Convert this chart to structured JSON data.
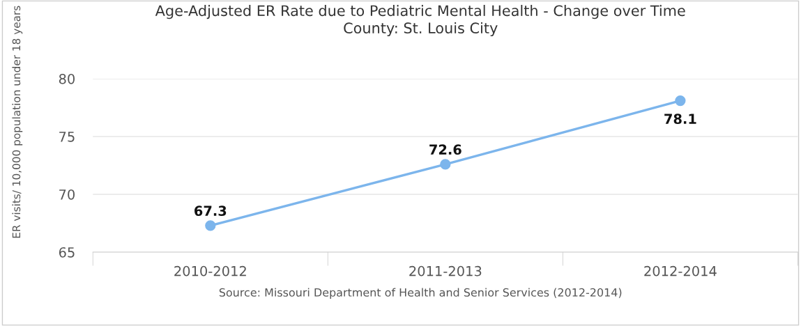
{
  "chart_data": {
    "type": "line",
    "title": "Age-Adjusted ER Rate due to Pediatric Mental Health - Change over Time\nCounty: St. Louis City",
    "ylabel": "ER visits/ 10,000 population under 18 years",
    "categories": [
      "2010-2012",
      "2011-2013",
      "2012-2014"
    ],
    "series": [
      {
        "color": "#7cb5ec",
        "values": [
          67.3,
          72.6,
          78.1
        ]
      }
    ],
    "ylim": [
      65,
      80
    ],
    "yticks": [
      65,
      70,
      75,
      80
    ],
    "grid": "y",
    "marker": "circle",
    "line_style": "solid",
    "data_labels": true,
    "annotations": [
      "Source: Missouri Department of Health and Senior Services (2012-2014)"
    ]
  }
}
